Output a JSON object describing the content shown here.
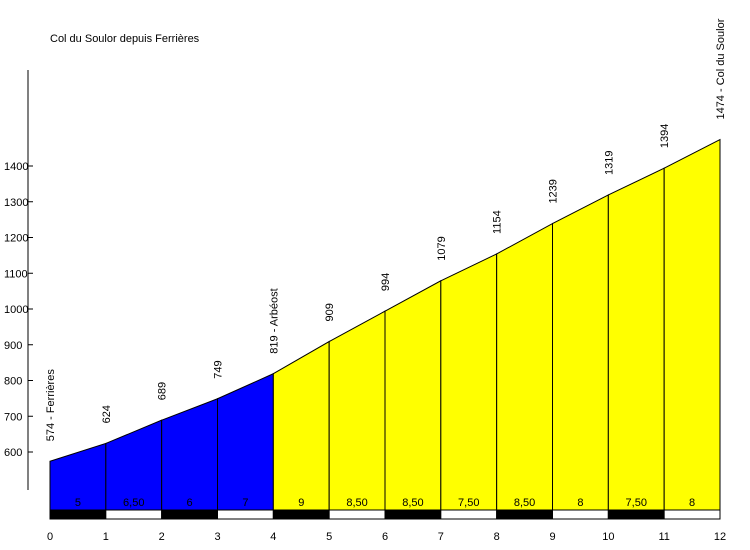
{
  "chart_data": {
    "type": "area",
    "title": "Col du Soulor depuis Ferrières",
    "xlabel": "",
    "ylabel": "",
    "xlim": [
      0,
      12
    ],
    "ylim": [
      460,
      1500
    ],
    "y_ticks": [
      600,
      700,
      800,
      900,
      1000,
      1100,
      1200,
      1300,
      1400
    ],
    "x_ticks": [
      "0",
      "1",
      "2",
      "3",
      "4",
      "5",
      "6",
      "7",
      "8",
      "9",
      "10",
      "11",
      "12"
    ],
    "x": [
      0,
      1,
      2,
      3,
      4,
      5,
      6,
      7,
      8,
      9,
      10,
      11,
      12
    ],
    "altitudes": [
      574,
      624,
      689,
      749,
      819,
      909,
      994,
      1079,
      1154,
      1239,
      1319,
      1394,
      1474
    ],
    "point_labels": [
      "574 - Ferrières",
      "624",
      "689",
      "749",
      "819 - Arbéost",
      "909",
      "994",
      "1079",
      "1154",
      "1239",
      "1319",
      "1394",
      "1474 - Col du Soulor"
    ],
    "gradients": [
      "5",
      "6,50",
      "6",
      "7",
      "9",
      "8,50",
      "8,50",
      "7,50",
      "8,50",
      "8",
      "7,50",
      "8"
    ],
    "segment_colors": [
      "#0000ff",
      "#0000ff",
      "#0000ff",
      "#0000ff",
      "#ffff00",
      "#ffff00",
      "#ffff00",
      "#ffff00",
      "#ffff00",
      "#ffff00",
      "#ffff00",
      "#ffff00"
    ],
    "grid": false,
    "legend": "none"
  }
}
